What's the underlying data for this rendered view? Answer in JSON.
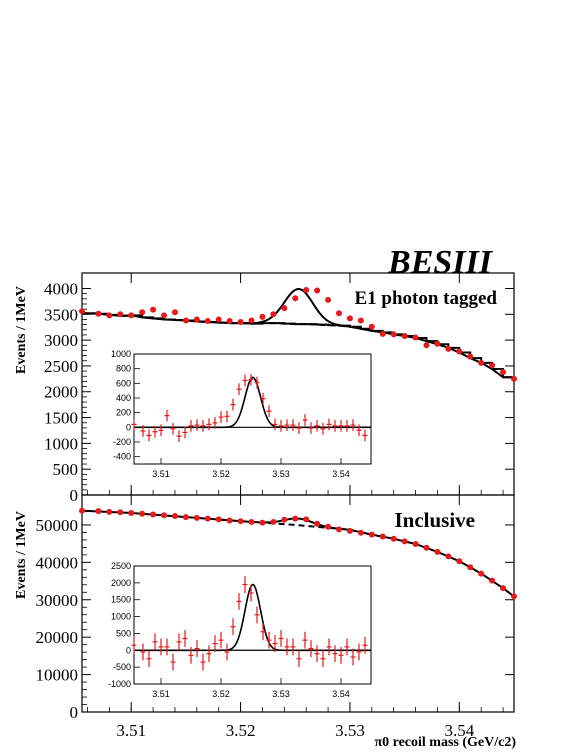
{
  "experiment_label": "BESIII",
  "chart_data": [
    {
      "type": "scatter",
      "panel": "top",
      "annotation": "E1 photon tagged",
      "ylabel": "Events / 1MeV",
      "xlim": [
        3.5055,
        3.545
      ],
      "ylim": [
        0,
        4300
      ],
      "yticks": [
        0,
        500,
        1000,
        1500,
        2000,
        2500,
        3000,
        3500,
        4000
      ],
      "series": [
        {
          "role": "data",
          "x": [
            3.5055,
            3.507,
            3.508,
            3.509,
            3.51,
            3.511,
            3.512,
            3.513,
            3.514,
            3.515,
            3.516,
            3.517,
            3.518,
            3.519,
            3.52,
            3.521,
            3.522,
            3.523,
            3.524,
            3.525,
            3.526,
            3.527,
            3.528,
            3.529,
            3.53,
            3.531,
            3.532,
            3.533,
            3.534,
            3.535,
            3.536,
            3.537,
            3.538,
            3.539,
            3.54,
            3.541,
            3.542,
            3.543,
            3.544,
            3.545
          ],
          "y": [
            3560,
            3510,
            3480,
            3500,
            3480,
            3540,
            3590,
            3480,
            3540,
            3380,
            3400,
            3370,
            3400,
            3370,
            3350,
            3380,
            3450,
            3500,
            3620,
            3810,
            3970,
            3960,
            3780,
            3520,
            3420,
            3380,
            3260,
            3120,
            3110,
            3080,
            3050,
            2900,
            2930,
            2830,
            2780,
            2680,
            2560,
            2510,
            2380,
            2250
          ]
        },
        {
          "role": "background-histogram",
          "x": [
            3.5055,
            3.507,
            3.508,
            3.509,
            3.51,
            3.511,
            3.512,
            3.513,
            3.514,
            3.515,
            3.516,
            3.517,
            3.518,
            3.519,
            3.52,
            3.521,
            3.522,
            3.523,
            3.524,
            3.525,
            3.526,
            3.527,
            3.528,
            3.529,
            3.53,
            3.531,
            3.532,
            3.533,
            3.534,
            3.535,
            3.536,
            3.537,
            3.538,
            3.539,
            3.54,
            3.541,
            3.542,
            3.543,
            3.544
          ],
          "y": [
            3520,
            3510,
            3490,
            3470,
            3480,
            3440,
            3420,
            3400,
            3390,
            3380,
            3360,
            3350,
            3340,
            3330,
            3330,
            3320,
            3330,
            3330,
            3320,
            3310,
            3310,
            3300,
            3290,
            3280,
            3260,
            3220,
            3180,
            3150,
            3110,
            3080,
            3040,
            2980,
            2920,
            2850,
            2760,
            2650,
            2560,
            2440,
            2280
          ]
        },
        {
          "role": "fit",
          "peak_x": 3.5253,
          "peak_y": 3990,
          "sigma": 0.0013
        }
      ],
      "inset": {
        "xlim": [
          3.5055,
          3.545
        ],
        "ylim": [
          -500,
          1000
        ],
        "xticks": [
          3.51,
          3.52,
          3.53,
          3.54
        ],
        "yticks": [
          -400,
          -200,
          0,
          200,
          400,
          600,
          800,
          1000
        ],
        "x": [
          3.5055,
          3.507,
          3.508,
          3.509,
          3.51,
          3.511,
          3.512,
          3.513,
          3.514,
          3.515,
          3.516,
          3.517,
          3.518,
          3.519,
          3.52,
          3.521,
          3.522,
          3.523,
          3.524,
          3.525,
          3.526,
          3.527,
          3.528,
          3.529,
          3.53,
          3.531,
          3.532,
          3.533,
          3.534,
          3.535,
          3.536,
          3.537,
          3.538,
          3.539,
          3.54,
          3.541,
          3.542,
          3.543,
          3.544
        ],
        "y": [
          40,
          -50,
          -110,
          -60,
          -40,
          160,
          -20,
          -120,
          -70,
          20,
          30,
          20,
          40,
          60,
          140,
          150,
          310,
          520,
          640,
          650,
          610,
          390,
          220,
          40,
          20,
          30,
          30,
          -10,
          100,
          -10,
          20,
          -20,
          40,
          20,
          20,
          20,
          30,
          -40,
          -110
        ],
        "err": [
          80,
          80,
          80,
          80,
          80,
          80,
          80,
          80,
          80,
          80,
          80,
          80,
          80,
          80,
          80,
          80,
          80,
          80,
          80,
          80,
          80,
          80,
          80,
          80,
          80,
          80,
          80,
          80,
          80,
          80,
          80,
          80,
          80,
          80,
          80,
          80,
          80,
          80,
          80
        ],
        "fit_peak_y": 680
      }
    },
    {
      "type": "scatter",
      "panel": "bottom",
      "annotation": "Inclusive",
      "ylabel": "Events / 1MeV",
      "xlabel": "π0 recoil mass (GeV/c2)",
      "xlim": [
        3.5055,
        3.545
      ],
      "ylim": [
        0,
        58000
      ],
      "yticks": [
        0,
        10000,
        20000,
        30000,
        40000,
        50000
      ],
      "xticks": [
        3.51,
        3.52,
        3.53,
        3.54
      ],
      "series": [
        {
          "role": "data",
          "x": [
            3.5055,
            3.507,
            3.508,
            3.509,
            3.51,
            3.511,
            3.512,
            3.513,
            3.514,
            3.515,
            3.516,
            3.517,
            3.518,
            3.519,
            3.52,
            3.521,
            3.522,
            3.523,
            3.524,
            3.525,
            3.526,
            3.527,
            3.528,
            3.529,
            3.53,
            3.531,
            3.532,
            3.533,
            3.534,
            3.535,
            3.536,
            3.537,
            3.538,
            3.539,
            3.54,
            3.541,
            3.542,
            3.543,
            3.544,
            3.545
          ],
          "y": [
            53800,
            53700,
            53500,
            53400,
            53200,
            53000,
            52800,
            52600,
            52400,
            52100,
            51900,
            51700,
            51500,
            51200,
            51000,
            50800,
            50600,
            50800,
            51400,
            51700,
            51500,
            50300,
            49500,
            48800,
            48400,
            47900,
            47400,
            46900,
            46300,
            45600,
            44900,
            43900,
            42800,
            41600,
            40300,
            38700,
            37000,
            35100,
            33100,
            30900
          ]
        },
        {
          "role": "background",
          "x": [
            3.5055,
            3.51,
            3.515,
            3.52,
            3.525,
            3.53,
            3.532,
            3.534,
            3.536,
            3.538,
            3.54,
            3.542,
            3.544,
            3.545
          ],
          "y": [
            53800,
            53200,
            52100,
            51000,
            50000,
            48700,
            47400,
            46300,
            44900,
            42800,
            40300,
            37000,
            33100,
            30900
          ]
        },
        {
          "role": "fit",
          "peak_x": 3.5253,
          "peak_y": 51700,
          "sigma": 0.0013
        }
      ],
      "inset": {
        "xlim": [
          3.5055,
          3.545
        ],
        "ylim": [
          -1000,
          2500
        ],
        "xticks": [
          3.51,
          3.52,
          3.53,
          3.54
        ],
        "yticks": [
          -1000,
          -500,
          0,
          500,
          1000,
          1500,
          2000,
          2500
        ],
        "x": [
          3.5055,
          3.507,
          3.508,
          3.509,
          3.51,
          3.511,
          3.512,
          3.513,
          3.514,
          3.515,
          3.516,
          3.517,
          3.518,
          3.519,
          3.52,
          3.521,
          3.522,
          3.523,
          3.524,
          3.525,
          3.526,
          3.527,
          3.528,
          3.529,
          3.53,
          3.531,
          3.532,
          3.533,
          3.534,
          3.535,
          3.536,
          3.537,
          3.538,
          3.539,
          3.54,
          3.541,
          3.542,
          3.543,
          3.544
        ],
        "y": [
          150,
          -50,
          -250,
          250,
          100,
          100,
          -350,
          250,
          350,
          -150,
          50,
          -350,
          -100,
          200,
          300,
          -50,
          700,
          1450,
          1950,
          1700,
          1050,
          550,
          300,
          200,
          350,
          100,
          100,
          -250,
          300,
          50,
          -100,
          -250,
          100,
          -100,
          -150,
          100,
          -200,
          -50,
          150
        ],
        "err": [
          250,
          250,
          250,
          250,
          250,
          250,
          250,
          250,
          250,
          250,
          250,
          250,
          250,
          250,
          250,
          250,
          250,
          250,
          250,
          250,
          250,
          250,
          250,
          250,
          250,
          250,
          250,
          250,
          250,
          250,
          250,
          250,
          250,
          250,
          250,
          250,
          250,
          250,
          250
        ],
        "fit_peak_y": 1950
      }
    }
  ],
  "colors": {
    "data_points": "#e41a1c",
    "fit_line": "#000000",
    "axis": "#000000"
  }
}
